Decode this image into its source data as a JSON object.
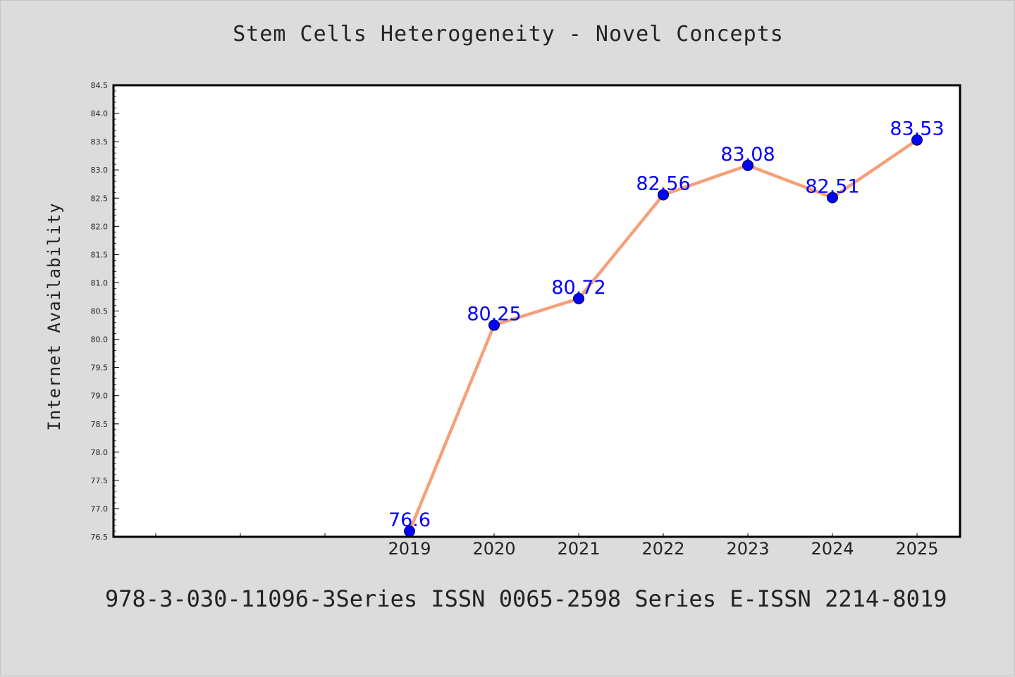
{
  "title": "Stem Cells Heterogeneity - Novel Concepts",
  "footer": "978-3-030-11096-3Series ISSN 0065-2598 Series E-ISSN 2214-8019",
  "chart_data": {
    "type": "line",
    "title": "Stem Cells Heterogeneity - Novel Concepts",
    "xlabel": "",
    "ylabel": "Internet Availability",
    "x": [
      "2019",
      "2020",
      "2021",
      "2022",
      "2023",
      "2024",
      "2025"
    ],
    "series": [
      {
        "values": [
          76.6,
          80.25,
          80.72,
          82.56,
          83.08,
          82.51,
          83.53
        ]
      }
    ],
    "data_labels": [
      "76.6",
      "80.25",
      "80.72",
      "82.56",
      "83.08",
      "82.51",
      "83.53"
    ],
    "ylim": [
      76.5,
      84.5
    ],
    "y_ticks": [
      "76.5",
      "77.0",
      "77.5",
      "78.0",
      "78.5",
      "79.0",
      "79.5",
      "80.0",
      "80.5",
      "81.0",
      "81.5",
      "82.0",
      "82.5",
      "83.0",
      "83.5",
      "84.0",
      "84.5"
    ],
    "x_slots_before_data": 3,
    "grid": false,
    "line_color": "#f5a07a",
    "marker_color": "#0000ff",
    "label_color": "#0000ff",
    "plot_background": "#ffffff",
    "figure_background": "#dcdcdc"
  }
}
